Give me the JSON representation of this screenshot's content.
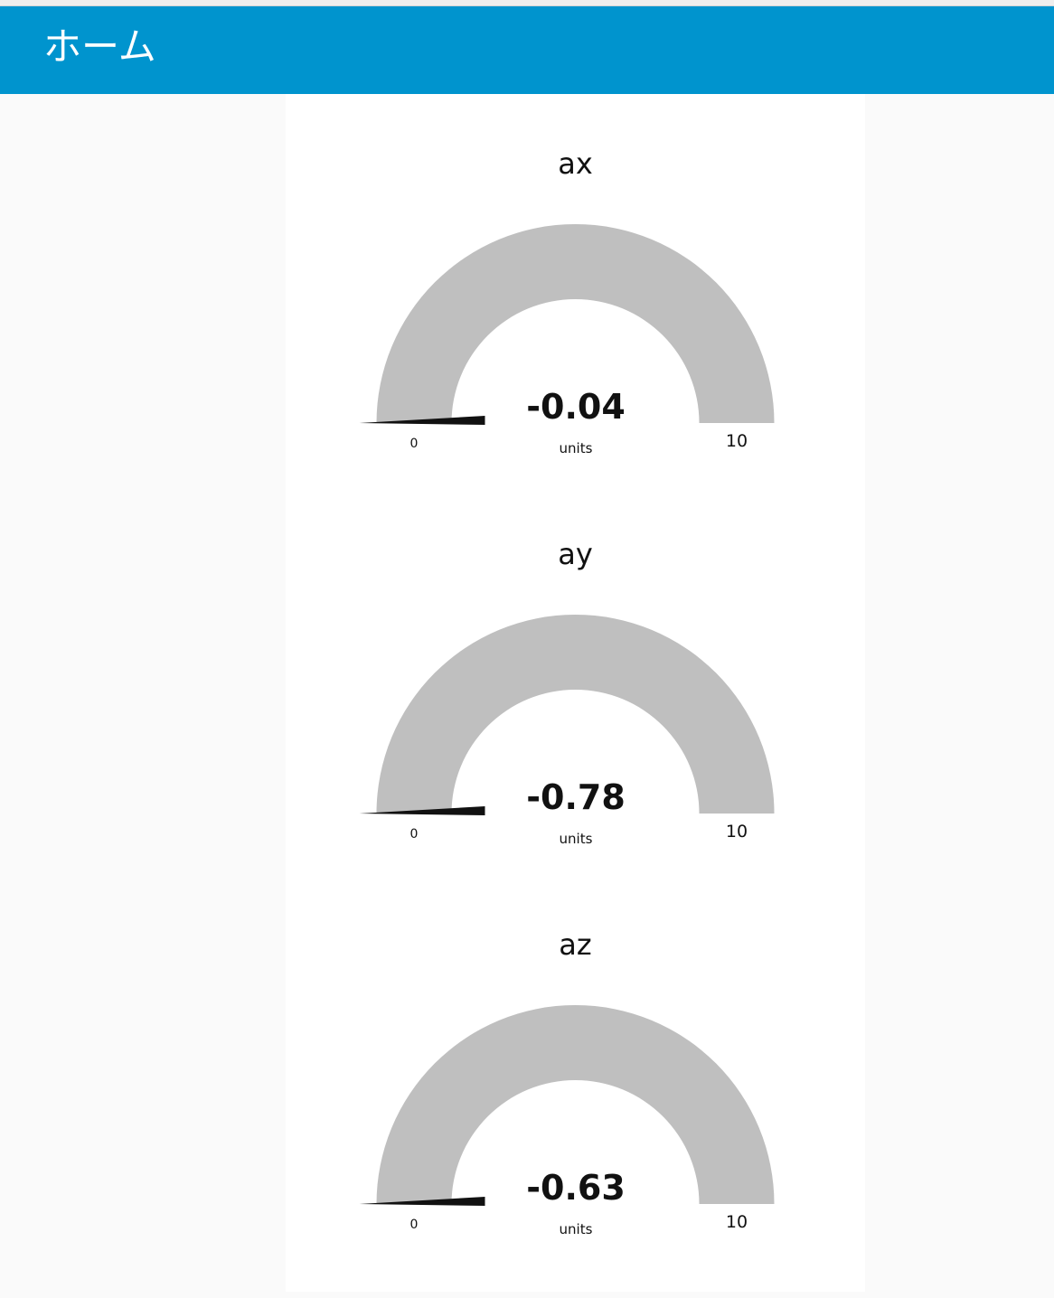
{
  "header": {
    "title": "ホーム"
  },
  "theme": {
    "header_color": "#0094ce",
    "gauge_track_color": "#bfbfbf",
    "needle_color": "#111111",
    "card_color": "#ffffff",
    "page_background": "#fafafa"
  },
  "gauges": [
    {
      "label": "ax",
      "value": -0.04,
      "value_text": "-0.04",
      "units": "units",
      "min": 0,
      "max": 10,
      "min_label": "0",
      "max_label": "10"
    },
    {
      "label": "ay",
      "value": -0.78,
      "value_text": "-0.78",
      "units": "units",
      "min": 0,
      "max": 10,
      "min_label": "0",
      "max_label": "10"
    },
    {
      "label": "az",
      "value": -0.63,
      "value_text": "-0.63",
      "units": "units",
      "min": 0,
      "max": 10,
      "min_label": "0",
      "max_label": "10"
    }
  ]
}
